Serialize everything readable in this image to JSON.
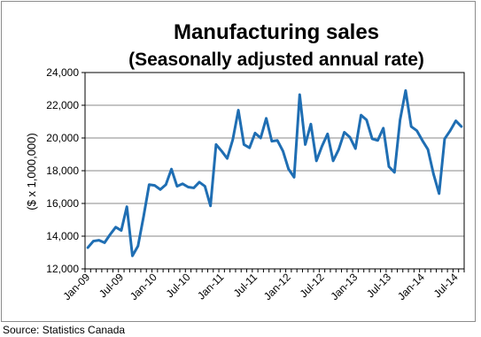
{
  "chart_data": {
    "type": "line",
    "title": "Manufacturing sales",
    "subtitle": "(Seasonally adjusted annual rate)",
    "ylabel": "($ x 1,000,000)",
    "xlabel": "",
    "ylim": [
      12000,
      24000
    ],
    "yticks": [
      "12,000",
      "14,000",
      "16,000",
      "18,000",
      "20,000",
      "22,000",
      "24,000"
    ],
    "ytick_values": [
      12000,
      14000,
      16000,
      18000,
      20000,
      22000,
      24000
    ],
    "xticks": [
      "Jan-09",
      "Jul-09",
      "Jan-10",
      "Jul-10",
      "Jan-11",
      "Jul-11",
      "Jan-12",
      "Jul-12",
      "Jan-13",
      "Jul-13",
      "Jan-14",
      "Jul-14"
    ],
    "grid": true,
    "legend": "none",
    "line_color": "#1f6eb3",
    "months": [
      "Jan-09",
      "Feb-09",
      "Mar-09",
      "Apr-09",
      "May-09",
      "Jun-09",
      "Jul-09",
      "Aug-09",
      "Sep-09",
      "Oct-09",
      "Nov-09",
      "Dec-09",
      "Jan-10",
      "Feb-10",
      "Mar-10",
      "Apr-10",
      "May-10",
      "Jun-10",
      "Jul-10",
      "Aug-10",
      "Sep-10",
      "Oct-10",
      "Nov-10",
      "Dec-10",
      "Jan-11",
      "Feb-11",
      "Mar-11",
      "Apr-11",
      "May-11",
      "Jun-11",
      "Jul-11",
      "Aug-11",
      "Sep-11",
      "Oct-11",
      "Nov-11",
      "Dec-11",
      "Jan-12",
      "Feb-12",
      "Mar-12",
      "Apr-12",
      "May-12",
      "Jun-12",
      "Jul-12",
      "Aug-12",
      "Sep-12",
      "Oct-12",
      "Nov-12",
      "Dec-12",
      "Jan-13",
      "Feb-13",
      "Mar-13",
      "Apr-13",
      "May-13",
      "Jun-13",
      "Jul-13",
      "Aug-13",
      "Sep-13",
      "Oct-13",
      "Nov-13",
      "Dec-13",
      "Jan-14",
      "Feb-14",
      "Mar-14",
      "Apr-14",
      "May-14",
      "Jun-14",
      "Jul-14",
      "Aug-14"
    ],
    "values": [
      13300,
      13700,
      13750,
      13600,
      14100,
      14550,
      14350,
      15800,
      12800,
      13400,
      15200,
      17150,
      17100,
      16850,
      17150,
      18100,
      17050,
      17200,
      17000,
      16950,
      17300,
      17050,
      15850,
      19600,
      19200,
      18750,
      19900,
      21700,
      19600,
      19400,
      20300,
      20000,
      21200,
      19800,
      19850,
      19200,
      18100,
      17600,
      22650,
      19600,
      20850,
      18600,
      19500,
      20250,
      18600,
      19300,
      20350,
      20050,
      19350,
      21400,
      21100,
      19950,
      19850,
      20600,
      18250,
      17900,
      21100,
      22900,
      20700,
      20450,
      19850,
      19300,
      17800,
      16600,
      19950,
      20450,
      21050,
      20700
    ]
  },
  "source": "Source: Statistics Canada"
}
